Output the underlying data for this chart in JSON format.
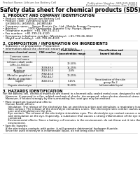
{
  "title": "Safety data sheet for chemical products (SDS)",
  "header_left": "Product Name: Lithium Ion Battery Cell",
  "header_right_line1": "Publication Number: SER-049-00019",
  "header_right_line2": "Establishment / Revision: Dec.7,2019",
  "section1_title": "1. PRODUCT AND COMPANY IDENTIFICATION",
  "section1_lines": [
    "• Product name: Lithium Ion Battery Cell",
    "• Product code: Cylindrical-type cell",
    "   (JH18650U, JH18650L, JH18650A)",
    "• Company name:    Sanyo Electric Co., Ltd., Mobile Energy Company",
    "• Address:            2001 Kamiosaka, Sumoto City, Hyogo, Japan",
    "• Telephone number:  +81-799-26-4111",
    "• Fax number:  +81-799-26-4120",
    "• Emergency telephone number (Weekdays): +81-799-26-3662",
    "   (Night and holiday): +81-799-26-4101"
  ],
  "section2_title": "2. COMPOSITION / INFORMATION ON INGREDIENTS",
  "section2_pre": [
    "• Substance or preparation: Preparation",
    "• Information about the chemical nature of product:"
  ],
  "table_col_labels": [
    "Common chemical name",
    "CAS number",
    "Concentration /\nConcentration range",
    "Classification and\nhazard labeling"
  ],
  "table_rows": [
    [
      "Common name",
      "",
      "",
      ""
    ],
    [
      "Chemical name",
      "",
      "",
      ""
    ],
    [
      "Lithium cobalt oxide\n(LiMn-Co-NiO2x)",
      "-",
      "30-50%",
      "-"
    ],
    [
      "Iron",
      "7439-89-6",
      "15-25%",
      "-"
    ],
    [
      "Aluminum",
      "7429-90-5",
      "2-8%",
      "-"
    ],
    [
      "Graphite\n(Metal in graphite+)\n(Artific.al graphite)",
      "7782-42-5\n7782-44-7",
      "10-25%",
      "-"
    ],
    [
      "Copper",
      "7440-50-8",
      "5-15%",
      "Sensitization of the skin\ngroup No.2"
    ],
    [
      "Organic electrolyte",
      "-",
      "10-20%",
      "Inflammable liquid"
    ]
  ],
  "section3_title": "3. HAZARDS IDENTIFICATION",
  "section3_para1": "For the battery cell, chemical materials are stored in a hermetically sealed metal case, designed to withstand temperatures and pressures encountered during normal use. As a result, during normal use, there is no physical danger of ignition or explosion and there is no danger of hazardous materials leakage.",
  "section3_para2": "   However, if exposed to a fire, added mechanical shocks, decomposed, when electro-chemical stress is used, the gas release vent can be operated. The battery cell case will be breached of the particles, hazardous materials may be released.",
  "section3_para3": "   Moreover, if heated strongly by the surrounding fire, soot gas may be emitted.",
  "section3_bullet1_title": "• Most important hazard and effects:",
  "section3_b1_lines": [
    "   Human health effects:",
    "      Inhalation: The release of the electrolyte has an anesthesia action and stimulates a respiratory tract.",
    "      Skin contact: The release of the electrolyte stimulates a skin. The electrolyte skin contact causes a",
    "      sore and stimulation on the skin.",
    "      Eye contact: The release of the electrolyte stimulates eyes. The electrolyte eye contact causes a sore",
    "      and stimulation on the eye. Especially, a substance that causes a strong inflammation of the eye is",
    "      contained.",
    "      Environmental effects: Since a battery cell remains in the environment, do not throw out it into the",
    "      environment."
  ],
  "section3_bullet2_title": "• Specific hazards:",
  "section3_b2_lines": [
    "   If the electrolyte contacts with water, it will generate detrimental hydrogen fluoride.",
    "   Since the used electrolyte is inflammable liquid, do not bring close to fire."
  ],
  "bg_color": "#ffffff",
  "text_color": "#000000",
  "gray_text": "#555555",
  "line_color": "#aaaaaa",
  "table_bg": "#eeeeee"
}
